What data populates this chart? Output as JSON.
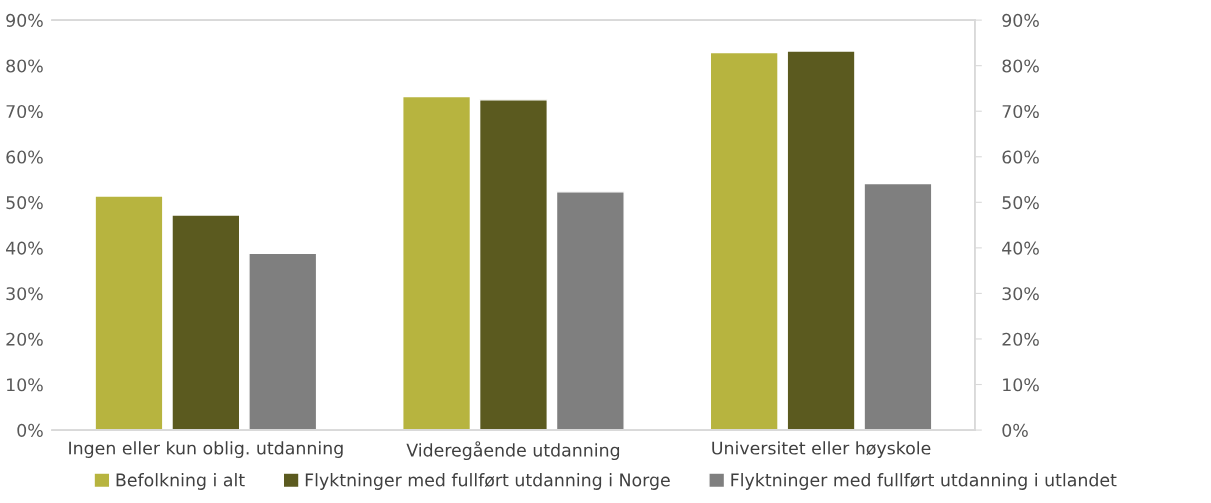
{
  "chart_data": {
    "type": "bar",
    "categories": [
      "Ingen eller kun oblig. utdanning",
      "Videregående utdanning",
      "Universitet eller høyskole"
    ],
    "series": [
      {
        "name": "Befolkning i alt",
        "color": "#b7b43f",
        "values": [
          51.4,
          73.2,
          82.9
        ]
      },
      {
        "name": "Flyktninger med fullført utdanning i Norge",
        "color": "#5b5a1f",
        "values": [
          47.2,
          72.5,
          83.2
        ]
      },
      {
        "name": "Flyktninger med fullført utdanning i utlandet",
        "color": "#7f7f7f",
        "values": [
          38.8,
          52.3,
          54.1
        ]
      }
    ],
    "ylim": [
      0,
      90
    ],
    "yticks": [
      {
        "value": 0,
        "label": "0%"
      },
      {
        "value": 10,
        "label": "10%"
      },
      {
        "value": 20,
        "label": "20%"
      },
      {
        "value": 30,
        "label": "30%"
      },
      {
        "value": 40,
        "label": "40%"
      },
      {
        "value": 50,
        "label": "50%"
      },
      {
        "value": 60,
        "label": "60%"
      },
      {
        "value": 70,
        "label": "70%"
      },
      {
        "value": 80,
        "label": "80%"
      },
      {
        "value": 90,
        "label": "90%"
      }
    ],
    "y2lim": [
      0,
      90
    ],
    "y2ticks": [
      {
        "value": 0,
        "label": "0%"
      },
      {
        "value": 10,
        "label": "10%"
      },
      {
        "value": 20,
        "label": "20%"
      },
      {
        "value": 30,
        "label": "30%"
      },
      {
        "value": 40,
        "label": "40%"
      },
      {
        "value": 50,
        "label": "50%"
      },
      {
        "value": 60,
        "label": "60%"
      },
      {
        "value": 70,
        "label": "70%"
      },
      {
        "value": 80,
        "label": "80%"
      },
      {
        "value": 90,
        "label": "90%"
      }
    ],
    "grid": false,
    "legend": "bottom"
  }
}
